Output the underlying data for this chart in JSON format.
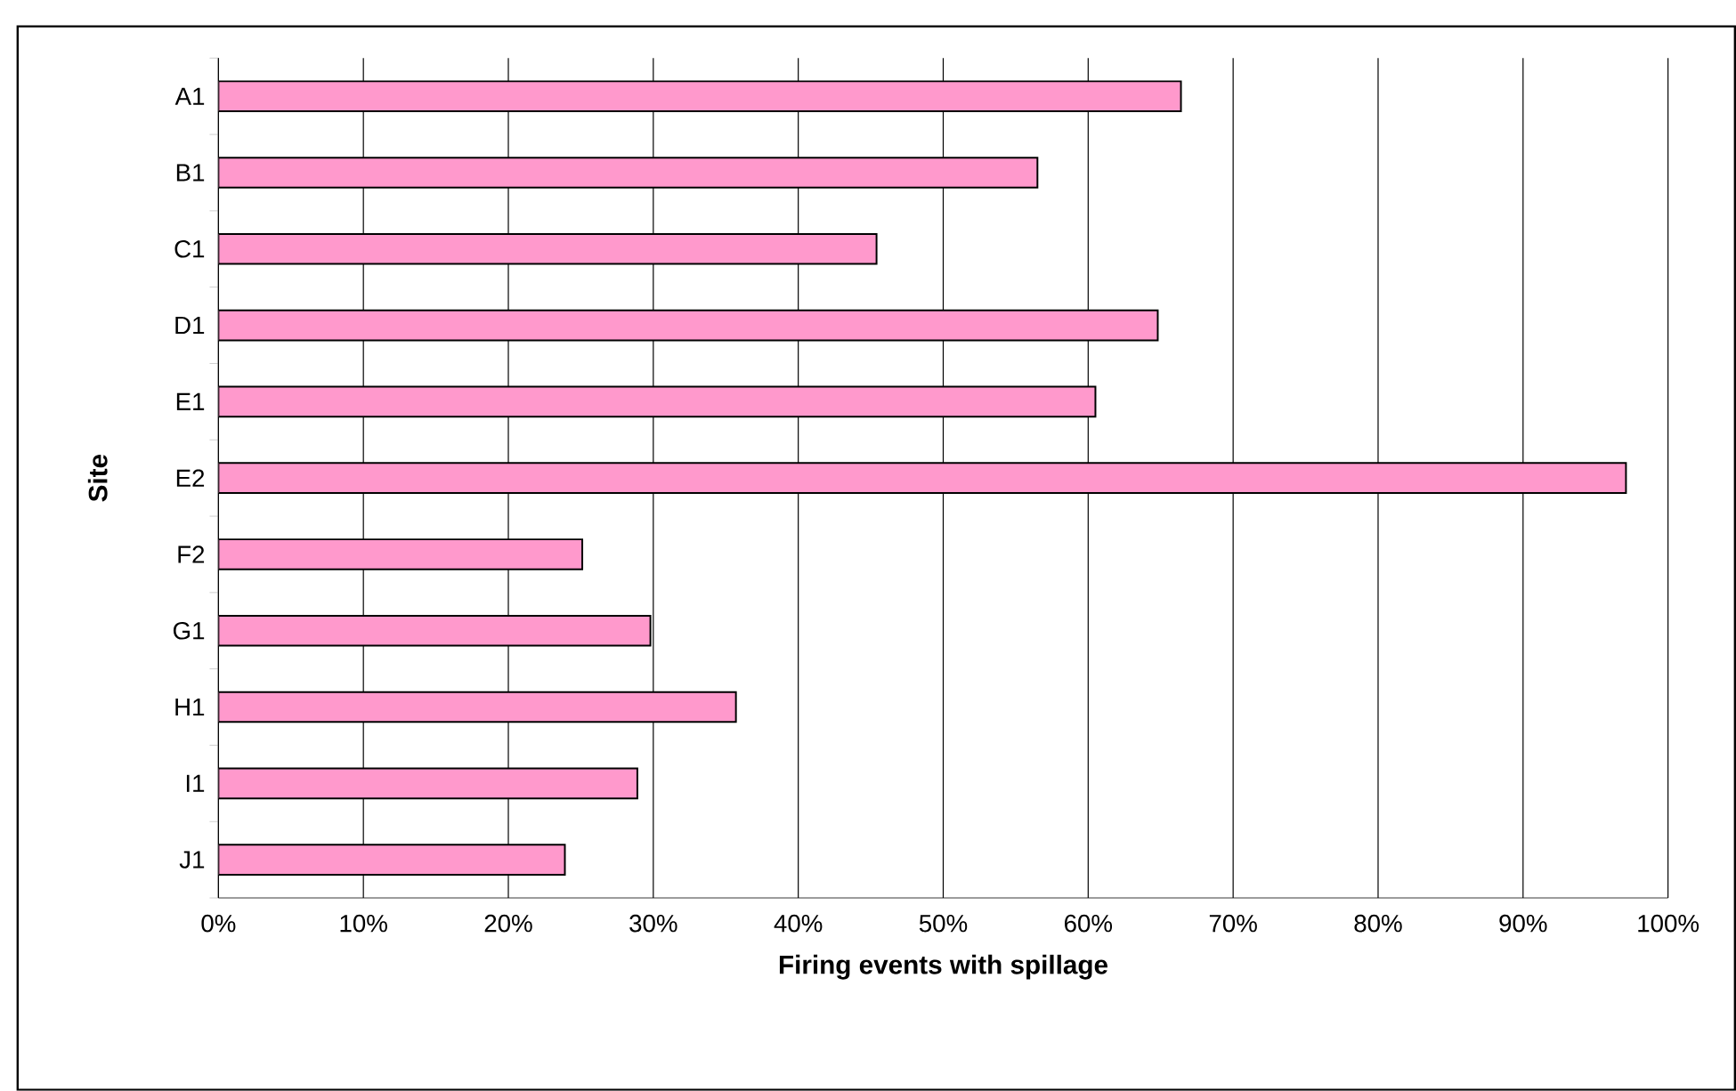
{
  "chart_data": {
    "type": "bar",
    "orientation": "horizontal",
    "xlabel": "Firing events with spillage",
    "ylabel": "Site",
    "categories": [
      "A1",
      "B1",
      "C1",
      "D1",
      "E1",
      "E2",
      "F2",
      "G1",
      "H1",
      "I1",
      "J1"
    ],
    "values": [
      66.4,
      56.5,
      45.4,
      64.8,
      60.5,
      97.1,
      25.1,
      29.8,
      35.7,
      28.9,
      23.9
    ],
    "color": "#ff99cc",
    "xlim": [
      0,
      100
    ],
    "xticks": [
      {
        "value": 0,
        "label": "0%"
      },
      {
        "value": 10,
        "label": "10%"
      },
      {
        "value": 20,
        "label": "20%"
      },
      {
        "value": 30,
        "label": "30%"
      },
      {
        "value": 40,
        "label": "40%"
      },
      {
        "value": 50,
        "label": "50%"
      },
      {
        "value": 60,
        "label": "60%"
      },
      {
        "value": 70,
        "label": "70%"
      },
      {
        "value": 80,
        "label": "80%"
      },
      {
        "value": 90,
        "label": "90%"
      },
      {
        "value": 100,
        "label": "100%"
      }
    ],
    "grid": "x"
  }
}
